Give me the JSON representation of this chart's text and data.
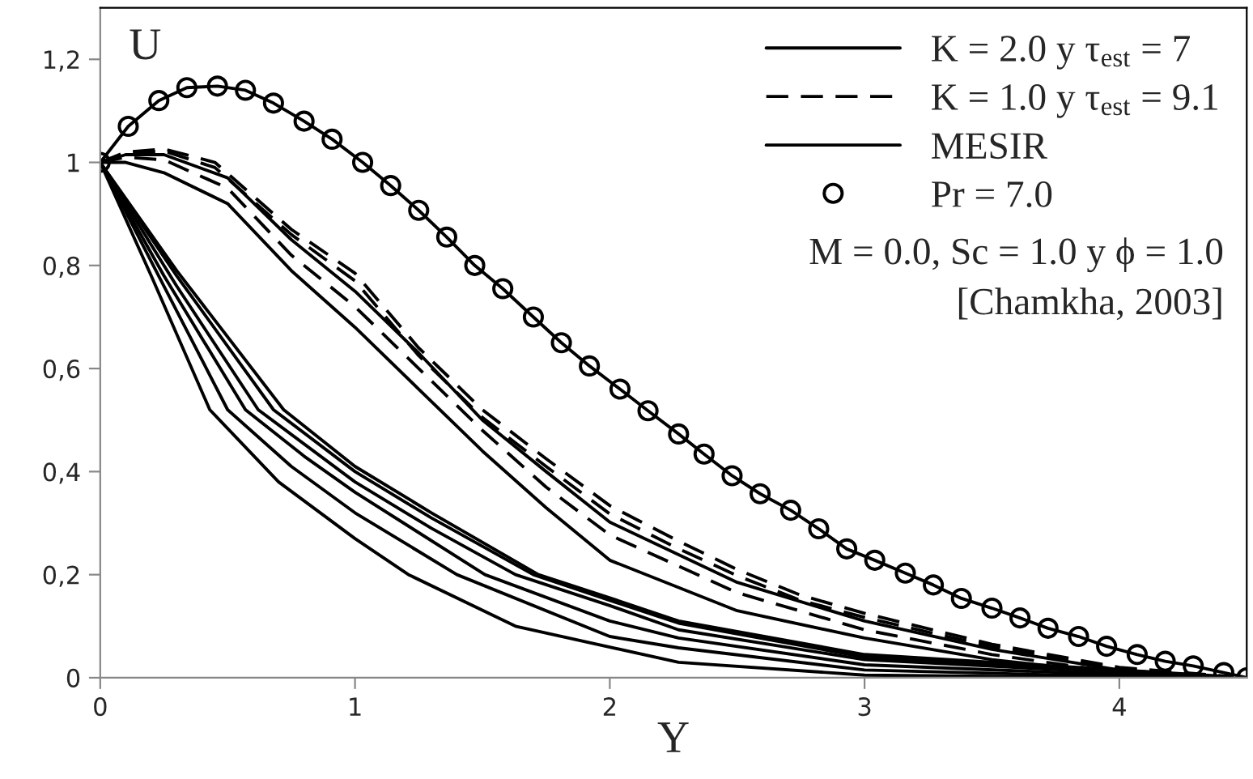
{
  "chart_data": {
    "type": "line",
    "xlabel": "Y",
    "ylabel": "U",
    "xlim": [
      0,
      4.5
    ],
    "xticks": [
      0,
      1,
      2,
      3,
      4
    ],
    "ylim": [
      0,
      1.3
    ],
    "yticks": [
      0,
      {
        "value": 0.2,
        "label": "0,2"
      },
      {
        "value": 0.4,
        "label": "0,4"
      },
      {
        "value": 0.6,
        "label": "0,6"
      },
      {
        "value": 0.8,
        "label": "0,8"
      },
      1,
      {
        "value": 1.2,
        "label": "1,2"
      }
    ],
    "grid": false,
    "legend": "top right",
    "annotations": [
      "M = 0.0, Sc = 1.0 y ϕ = 1.0",
      "[Chamkha, 2003]"
    ],
    "series": [
      {
        "name": "K = 2.0 y τ$_{est}$ = 7",
        "line_style": "solid",
        "color": "#000000",
        "x": [
          0,
          0.2,
          0.43,
          0.7,
          1,
          1.21,
          1.63,
          2.27,
          3,
          4
        ],
        "values": [
          1,
          0.78,
          0.52,
          0.38,
          0.27,
          0.2,
          0.1,
          0.03,
          0.005,
          0
        ]
      },
      {
        "line_style": "solid",
        "color": "#000000",
        "x": [
          0,
          0.25,
          0.5,
          0.75,
          1,
          1.4,
          2,
          2.27,
          3,
          4.1
        ],
        "values": [
          1,
          0.76,
          0.52,
          0.41,
          0.32,
          0.2,
          0.08,
          0.058,
          0.015,
          0.001
        ]
      },
      {
        "line_style": "solid",
        "color": "#000000",
        "x": [
          0,
          0.25,
          0.57,
          0.8,
          1,
          1.51,
          2,
          2.27,
          3,
          4.2
        ],
        "values": [
          1,
          0.78,
          0.52,
          0.43,
          0.36,
          0.2,
          0.11,
          0.077,
          0.025,
          0.002
        ]
      },
      {
        "line_style": "solid",
        "color": "#000000",
        "x": [
          0,
          0.3,
          0.62,
          1,
          1.3,
          1.63,
          2,
          2.27,
          3,
          4.3
        ],
        "values": [
          1,
          0.76,
          0.52,
          0.38,
          0.29,
          0.2,
          0.14,
          0.093,
          0.035,
          0.002
        ]
      },
      {
        "line_style": "solid",
        "color": "#000000",
        "x": [
          0,
          0.3,
          0.68,
          1,
          1.3,
          1.7,
          2,
          2.27,
          3,
          4.35
        ],
        "values": [
          1,
          0.78,
          0.52,
          0.4,
          0.31,
          0.2,
          0.15,
          0.106,
          0.04,
          0.003
        ]
      },
      {
        "line_style": "solid",
        "color": "#000000",
        "x": [
          0,
          0.3,
          0.72,
          1,
          1.3,
          1.72,
          2,
          2.27,
          3,
          4.4
        ],
        "values": [
          1,
          0.79,
          0.52,
          0.41,
          0.32,
          0.2,
          0.155,
          0.11,
          0.045,
          0.003
        ]
      },
      {
        "name": "K = 1.0 y τ$_{est}$ = 9.1",
        "line_style": "dashed",
        "color": "#000000",
        "x": [
          0,
          0.1,
          0.25,
          0.45,
          0.75,
          1,
          1.25,
          1.5,
          1.75,
          2,
          2.25,
          2.5,
          2.75,
          3,
          3.5,
          4,
          4.45
        ],
        "values": [
          1,
          1.02,
          1.026,
          1.0,
          0.87,
          0.785,
          0.64,
          0.52,
          0.425,
          0.334,
          0.27,
          0.21,
          0.16,
          0.125,
          0.065,
          0.02,
          0.002
        ]
      },
      {
        "line_style": "dashed",
        "color": "#000000",
        "x": [
          0,
          0.1,
          0.25,
          0.45,
          0.75,
          1,
          1.25,
          1.5,
          1.75,
          2,
          2.25,
          2.5,
          2.75,
          3,
          3.5,
          4,
          4.42
        ],
        "values": [
          1,
          1.018,
          1.022,
          0.99,
          0.86,
          0.77,
          0.625,
          0.505,
          0.41,
          0.318,
          0.255,
          0.198,
          0.15,
          0.117,
          0.06,
          0.018,
          0.002
        ]
      },
      {
        "line_style": "solid",
        "color": "#000000",
        "x": [
          0,
          0.1,
          0.25,
          0.5,
          0.75,
          1,
          1.25,
          1.5,
          1.75,
          2,
          2.5,
          3,
          3.5,
          4,
          4.38
        ],
        "values": [
          1,
          1.015,
          1.015,
          0.97,
          0.85,
          0.75,
          0.63,
          0.5,
          0.4,
          0.302,
          0.185,
          0.11,
          0.055,
          0.015,
          0.002
        ]
      },
      {
        "line_style": "dashed",
        "color": "#000000",
        "x": [
          0,
          0.1,
          0.25,
          0.5,
          0.75,
          1,
          1.25,
          1.5,
          1.75,
          2,
          2.5,
          3,
          3.5,
          4,
          4.32
        ],
        "values": [
          1,
          1.01,
          1.005,
          0.95,
          0.82,
          0.72,
          0.6,
          0.48,
          0.37,
          0.277,
          0.165,
          0.093,
          0.045,
          0.01,
          0.001
        ]
      },
      {
        "line_style": "solid",
        "color": "#000000",
        "x": [
          0,
          0.1,
          0.25,
          0.5,
          0.75,
          1,
          1.25,
          1.5,
          1.75,
          2,
          2.5,
          3,
          3.5,
          4,
          4.25
        ],
        "values": [
          1,
          1.0,
          0.98,
          0.92,
          0.79,
          0.68,
          0.56,
          0.44,
          0.33,
          0.228,
          0.13,
          0.077,
          0.035,
          0.008,
          0.001
        ]
      },
      {
        "name": "MESIR",
        "line_style": "solid",
        "color": "#000000",
        "x": [
          0,
          0.11,
          0.23,
          0.34,
          0.46,
          0.57,
          0.68,
          0.8,
          0.91,
          1.03,
          1.14,
          1.25,
          1.36,
          1.47,
          1.58,
          1.7,
          1.81,
          1.92,
          2.04,
          2.15,
          2.27,
          2.37,
          2.48,
          2.59,
          2.71,
          2.82,
          2.93,
          3.04,
          3.16,
          3.27,
          3.38,
          3.5,
          3.61,
          3.72,
          3.84,
          3.95,
          4.07,
          4.18,
          4.29,
          4.41,
          4.5
        ],
        "values": [
          1.0,
          1.07,
          1.12,
          1.145,
          1.148,
          1.14,
          1.115,
          1.08,
          1.045,
          1.0,
          0.955,
          0.907,
          0.855,
          0.8,
          0.755,
          0.7,
          0.65,
          0.605,
          0.56,
          0.518,
          0.473,
          0.434,
          0.392,
          0.357,
          0.325,
          0.289,
          0.25,
          0.228,
          0.203,
          0.18,
          0.154,
          0.135,
          0.116,
          0.096,
          0.08,
          0.061,
          0.045,
          0.032,
          0.023,
          0.01,
          0
        ]
      },
      {
        "name": "Pr = 7.0",
        "type": "scatter",
        "marker": "circle",
        "color": "#000000",
        "x": [
          0,
          0.11,
          0.23,
          0.34,
          0.46,
          0.57,
          0.68,
          0.8,
          0.91,
          1.03,
          1.14,
          1.25,
          1.36,
          1.47,
          1.58,
          1.7,
          1.81,
          1.92,
          2.04,
          2.15,
          2.27,
          2.37,
          2.48,
          2.59,
          2.71,
          2.82,
          2.93,
          3.04,
          3.16,
          3.27,
          3.38,
          3.5,
          3.61,
          3.72,
          3.84,
          3.95,
          4.07,
          4.18,
          4.29,
          4.41,
          4.5
        ],
        "values": [
          1.0,
          1.07,
          1.12,
          1.145,
          1.148,
          1.14,
          1.115,
          1.08,
          1.045,
          1.0,
          0.955,
          0.907,
          0.855,
          0.8,
          0.755,
          0.7,
          0.65,
          0.605,
          0.56,
          0.518,
          0.473,
          0.434,
          0.392,
          0.357,
          0.325,
          0.289,
          0.25,
          0.228,
          0.203,
          0.18,
          0.154,
          0.135,
          0.116,
          0.096,
          0.08,
          0.061,
          0.045,
          0.032,
          0.023,
          0.01,
          0
        ]
      }
    ]
  }
}
